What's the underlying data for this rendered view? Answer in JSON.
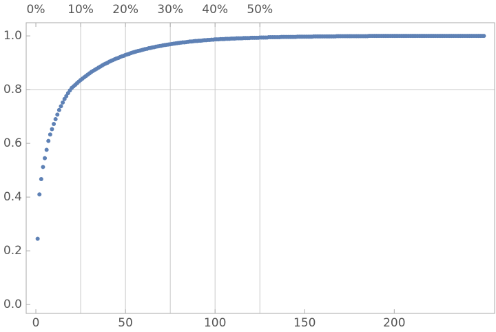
{
  "chart_data": {
    "type": "scatter",
    "x": [
      1,
      2,
      3,
      4,
      5,
      6,
      7,
      8,
      9,
      10,
      11,
      12,
      13,
      14,
      15,
      16,
      17,
      18,
      19,
      20,
      21,
      22,
      23,
      24,
      25,
      26,
      27,
      28,
      29,
      30,
      31,
      32,
      33,
      34,
      35,
      36,
      37,
      38,
      39,
      40,
      41,
      42,
      43,
      44,
      45,
      46,
      47,
      48,
      49,
      50,
      51,
      52,
      53,
      54,
      55,
      56,
      57,
      58,
      59,
      60,
      61,
      62,
      63,
      64,
      65,
      66,
      67,
      68,
      69,
      70,
      71,
      72,
      73,
      74,
      75,
      76,
      77,
      78,
      79,
      80,
      81,
      82,
      83,
      84,
      85,
      86,
      87,
      88,
      89,
      90,
      91,
      92,
      93,
      94,
      95,
      96,
      97,
      98,
      99,
      100,
      101,
      102,
      103,
      104,
      105,
      106,
      107,
      108,
      109,
      110,
      111,
      112,
      113,
      114,
      115,
      116,
      117,
      118,
      119,
      120,
      121,
      122,
      123,
      124,
      125,
      126,
      127,
      128,
      129,
      130,
      131,
      132,
      133,
      134,
      135,
      136,
      137,
      138,
      139,
      140,
      141,
      142,
      143,
      144,
      145,
      146,
      147,
      148,
      149,
      150,
      151,
      152,
      153,
      154,
      155,
      156,
      157,
      158,
      159,
      160,
      161,
      162,
      163,
      164,
      165,
      166,
      167,
      168,
      169,
      170,
      171,
      172,
      173,
      174,
      175,
      176,
      177,
      178,
      179,
      180,
      181,
      182,
      183,
      184,
      185,
      186,
      187,
      188,
      189,
      190,
      191,
      192,
      193,
      194,
      195,
      196,
      197,
      198,
      199,
      200,
      201,
      202,
      203,
      204,
      205,
      206,
      207,
      208,
      209,
      210,
      211,
      212,
      213,
      214,
      215,
      216,
      217,
      218,
      219,
      220,
      221,
      222,
      223,
      224,
      225,
      226,
      227,
      228,
      229,
      230,
      231,
      232,
      233,
      234,
      235,
      236,
      237,
      238,
      239,
      240,
      241,
      242,
      243,
      244,
      245,
      246,
      247,
      248,
      249,
      250
    ],
    "values": [
      0.245,
      0.41,
      0.467,
      0.512,
      0.545,
      0.576,
      0.609,
      0.633,
      0.653,
      0.672,
      0.69,
      0.707,
      0.724,
      0.738,
      0.752,
      0.765,
      0.776,
      0.787,
      0.797,
      0.806,
      0.812,
      0.818,
      0.824,
      0.83,
      0.836,
      0.841,
      0.846,
      0.851,
      0.856,
      0.861,
      0.866,
      0.87,
      0.874,
      0.878,
      0.882,
      0.886,
      0.89,
      0.894,
      0.897,
      0.9,
      0.904,
      0.907,
      0.91,
      0.913,
      0.916,
      0.918,
      0.921,
      0.924,
      0.926,
      0.929,
      0.931,
      0.933,
      0.936,
      0.938,
      0.94,
      0.942,
      0.944,
      0.945,
      0.947,
      0.949,
      0.951,
      0.952,
      0.954,
      0.955,
      0.957,
      0.958,
      0.96,
      0.961,
      0.962,
      0.963,
      0.965,
      0.966,
      0.967,
      0.968,
      0.969,
      0.97,
      0.971,
      0.972,
      0.973,
      0.974,
      0.975,
      0.976,
      0.976,
      0.977,
      0.978,
      0.979,
      0.979,
      0.98,
      0.981,
      0.981,
      0.982,
      0.982,
      0.983,
      0.984,
      0.984,
      0.985,
      0.985,
      0.986,
      0.986,
      0.987,
      0.987,
      0.987,
      0.988,
      0.988,
      0.988,
      0.989,
      0.989,
      0.989,
      0.99,
      0.99,
      0.99,
      0.991,
      0.991,
      0.991,
      0.991,
      0.992,
      0.992,
      0.992,
      0.992,
      0.993,
      0.993,
      0.993,
      0.993,
      0.993,
      0.994,
      0.994,
      0.994,
      0.994,
      0.994,
      0.995,
      0.995,
      0.995,
      0.995,
      0.995,
      0.995,
      0.995,
      0.996,
      0.996,
      0.996,
      0.996,
      0.996,
      0.996,
      0.996,
      0.996,
      0.996,
      0.997,
      0.997,
      0.997,
      0.997,
      0.997,
      0.997,
      0.997,
      0.997,
      0.997,
      0.998,
      0.998,
      0.998,
      0.998,
      0.998,
      0.998,
      0.998,
      0.998,
      0.998,
      0.998,
      0.998,
      0.998,
      0.998,
      0.999,
      0.999,
      0.999,
      0.999,
      0.999,
      0.999,
      0.999,
      0.999,
      0.999,
      0.999,
      0.999,
      0.999,
      0.999,
      0.999,
      0.999,
      0.999,
      0.999,
      0.999,
      1,
      1,
      1,
      1,
      1,
      1,
      1,
      1,
      1,
      1,
      1,
      1,
      1,
      1,
      1,
      1,
      1,
      1,
      1,
      1,
      1,
      1,
      1,
      1,
      1,
      1,
      1,
      1,
      1,
      1,
      1,
      1,
      1,
      1,
      1,
      1,
      1,
      1,
      1,
      1,
      1,
      1,
      1,
      1,
      1,
      1,
      1,
      1,
      1,
      1,
      1,
      1,
      1,
      1,
      1,
      1,
      1,
      1,
      1,
      1,
      1,
      1,
      1,
      1,
      1
    ],
    "color": "#5e81b5",
    "xlim": [
      -5.4,
      256
    ],
    "ylim": [
      -0.033,
      1.049
    ],
    "xticks": [
      0,
      50,
      100,
      150,
      200
    ],
    "yticks": [
      {
        "value": 0,
        "label": "0.0"
      },
      {
        "value": 0.2,
        "label": "0.2"
      },
      {
        "value": 0.4,
        "label": "0.4"
      },
      {
        "value": 0.6,
        "label": "0.6"
      },
      {
        "value": 0.8,
        "label": "0.8"
      },
      {
        "value": 1,
        "label": "1.0"
      }
    ],
    "x2ticks": [
      {
        "value": 0,
        "label": "0%"
      },
      {
        "value": 25,
        "label": "10%"
      },
      {
        "value": 50,
        "label": "20%"
      },
      {
        "value": 75,
        "label": "30%"
      },
      {
        "value": 100,
        "label": "40%"
      },
      {
        "value": 125,
        "label": "50%"
      }
    ],
    "xgrid": [
      25,
      50,
      75,
      100,
      125
    ],
    "ygrid": [
      0.8
    ]
  }
}
